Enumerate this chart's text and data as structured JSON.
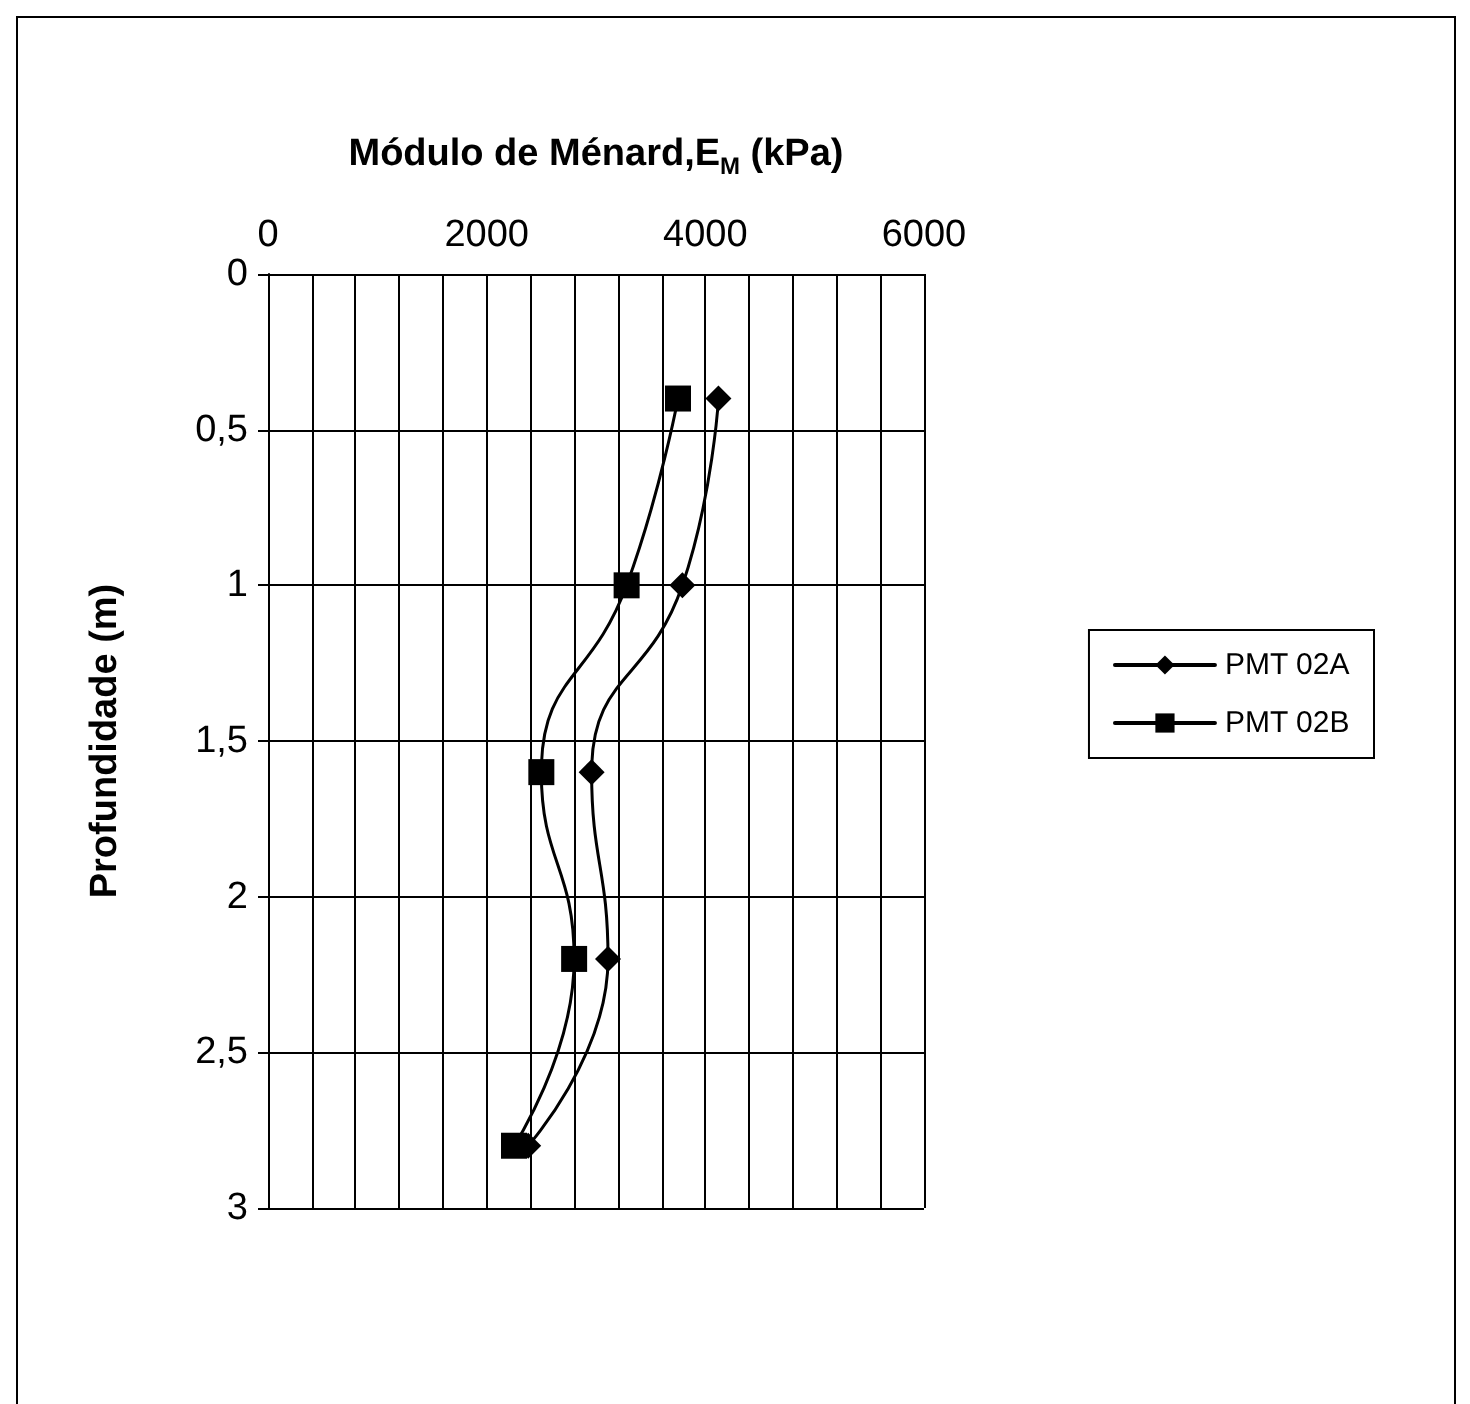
{
  "chart_data": {
    "type": "line",
    "xlabel": "Módulo de Ménard,E$_{M}$ (kPa)",
    "ylabel": "Profundidade (m)",
    "xlim": [
      0,
      6000
    ],
    "xticks": [
      0,
      2000,
      4000,
      6000
    ],
    "ylim": [
      3,
      0
    ],
    "yticks": [
      0,
      {
        "value": 0.5,
        "label": "0,5"
      },
      1,
      {
        "value": 1.5,
        "label": "1,5"
      },
      2,
      {
        "value": 2.5,
        "label": "2,5"
      },
      3
    ],
    "series": [
      {
        "name": "PMT 02A",
        "color": "#000000",
        "marker": "diamond",
        "x": [
          4120,
          3790,
          2960,
          3110,
          2380
        ],
        "values": [
          0.4,
          1.0,
          1.6,
          2.2,
          2.8
        ]
      },
      {
        "name": "PMT 02B",
        "color": "#000000",
        "marker": "square",
        "x": [
          3750,
          3280,
          2500,
          2800,
          2250
        ],
        "values": [
          0.4,
          1.0,
          1.6,
          2.2,
          2.8
        ]
      }
    ],
    "grid": true,
    "legend": "right"
  }
}
